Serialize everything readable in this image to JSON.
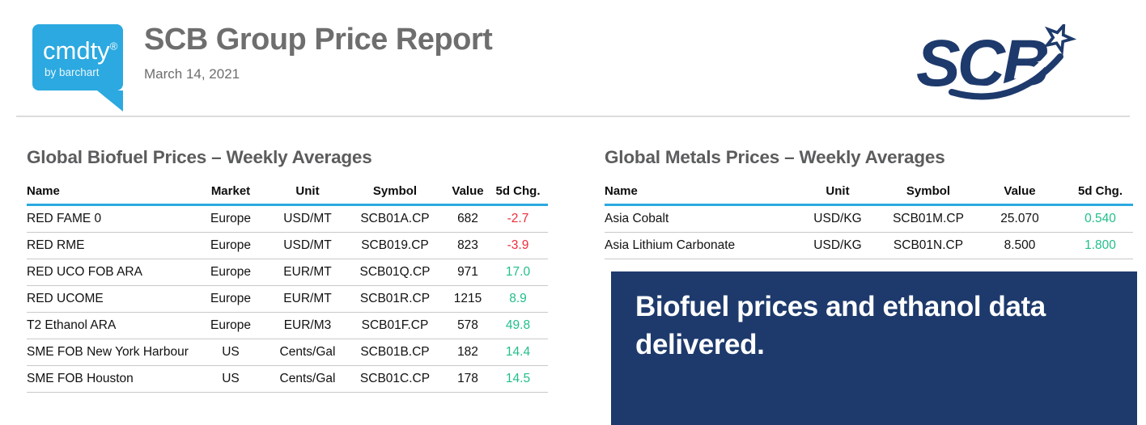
{
  "header": {
    "brand_logo": {
      "name": "cmdty",
      "registered": "®",
      "tagline": "by barchart"
    },
    "title": "SCB Group Price Report",
    "date": "March 14, 2021",
    "company_logo": {
      "text": "SCB"
    }
  },
  "biofuel": {
    "title": "Global Biofuel Prices – Weekly Averages",
    "columns": [
      "Name",
      "Market",
      "Unit",
      "Symbol",
      "Value",
      "5d Chg."
    ],
    "row_keys": [
      "name",
      "market",
      "unit",
      "symbol",
      "value",
      "chg"
    ],
    "rows": [
      {
        "name": "RED FAME 0",
        "market": "Europe",
        "unit": "USD/MT",
        "symbol": "SCB01A.CP",
        "value": "682",
        "chg": "-2.7",
        "chg_dir": "down"
      },
      {
        "name": "RED RME",
        "market": "Europe",
        "unit": "USD/MT",
        "symbol": "SCB019.CP",
        "value": "823",
        "chg": "-3.9",
        "chg_dir": "down"
      },
      {
        "name": "RED UCO FOB ARA",
        "market": "Europe",
        "unit": "EUR/MT",
        "symbol": "SCB01Q.CP",
        "value": "971",
        "chg": "17.0",
        "chg_dir": "up"
      },
      {
        "name": "RED UCOME",
        "market": "Europe",
        "unit": "EUR/MT",
        "symbol": "SCB01R.CP",
        "value": "1215",
        "chg": "8.9",
        "chg_dir": "up"
      },
      {
        "name": "T2 Ethanol ARA",
        "market": "Europe",
        "unit": "EUR/M3",
        "symbol": "SCB01F.CP",
        "value": "578",
        "chg": "49.8",
        "chg_dir": "up"
      },
      {
        "name": "SME FOB New York Harbour",
        "market": "US",
        "unit": "Cents/Gal",
        "symbol": "SCB01B.CP",
        "value": "182",
        "chg": "14.4",
        "chg_dir": "up"
      },
      {
        "name": "SME FOB Houston",
        "market": "US",
        "unit": "Cents/Gal",
        "symbol": "SCB01C.CP",
        "value": "178",
        "chg": "14.5",
        "chg_dir": "up"
      }
    ]
  },
  "metals": {
    "title": "Global Metals Prices – Weekly Averages",
    "columns": [
      "Name",
      "Unit",
      "Symbol",
      "Value",
      "5d Chg."
    ],
    "row_keys": [
      "name",
      "unit",
      "symbol",
      "value",
      "chg"
    ],
    "rows": [
      {
        "name": "Asia Cobalt",
        "unit": "USD/KG",
        "symbol": "SCB01M.CP",
        "value": "25.070",
        "chg": "0.540",
        "chg_dir": "up"
      },
      {
        "name": "Asia Lithium Carbonate",
        "unit": "USD/KG",
        "symbol": "SCB01N.CP",
        "value": "8.500",
        "chg": "1.800",
        "chg_dir": "up"
      }
    ]
  },
  "banner": {
    "text": "Biofuel prices and ethanol data delivered."
  },
  "colors": {
    "brand_blue": "#2BA9E0",
    "navy": "#1E3A6C",
    "positive_green": "#21BE8C",
    "negative_red": "#ED2C3B"
  }
}
